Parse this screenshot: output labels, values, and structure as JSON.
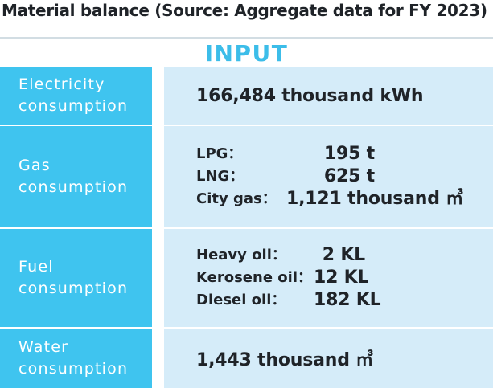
{
  "title": "Material balance (Source: Aggregate data for FY 2023)",
  "section": "INPUT",
  "rows": [
    {
      "label_line1": "Electricity",
      "label_line2": "consumption",
      "value": "166,484 thousand kWh"
    },
    {
      "label_line1": "Gas",
      "label_line2": "consumption",
      "items": [
        {
          "key": "LPG：",
          "value": "195 t"
        },
        {
          "key": "LNG：",
          "value": "625 t"
        },
        {
          "key": "City gas：",
          "value": "1,121 thousand ㎥"
        }
      ]
    },
    {
      "label_line1": "Fuel",
      "label_line2": "consumption",
      "items": [
        {
          "key": "Heavy oil：",
          "value": "2 KL"
        },
        {
          "key": "Kerosene oil：",
          "value": "12 KL"
        },
        {
          "key": "Diesel oil：",
          "value": "182 KL"
        }
      ]
    },
    {
      "label_line1": "Water",
      "label_line2": "consumption",
      "value": "1,443 thousand ㎥"
    }
  ]
}
